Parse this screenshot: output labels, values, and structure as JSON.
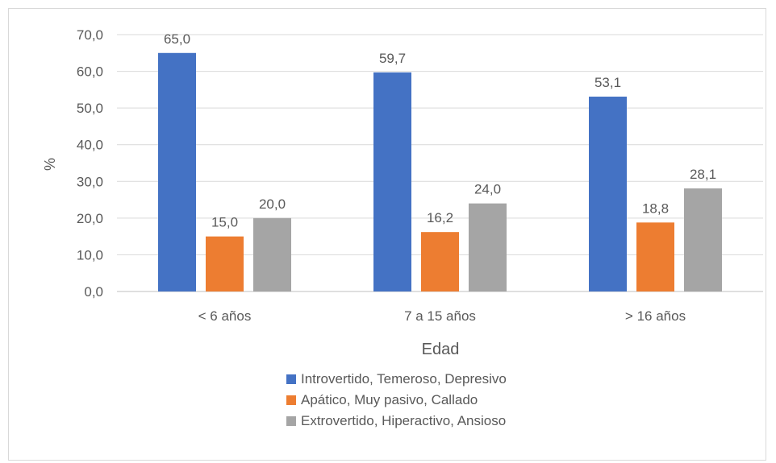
{
  "chart_data": {
    "type": "bar",
    "categories": [
      "< 6 años",
      "7 a 15 años",
      "> 16 años"
    ],
    "series": [
      {
        "name": "Introvertido, Temeroso, Depresivo",
        "values": [
          65.0,
          59.7,
          53.1
        ],
        "color": "#4472c4"
      },
      {
        "name": "Apático, Muy pasivo, Callado",
        "values": [
          15.0,
          16.2,
          18.8
        ],
        "color": "#ed7d31"
      },
      {
        "name": "Extrovertido, Hiperactivo, Ansioso",
        "values": [
          20.0,
          24.0,
          28.1
        ],
        "color": "#a5a5a5"
      }
    ],
    "title": "",
    "xlabel": "Edad",
    "ylabel": "%",
    "ylim": [
      0,
      70
    ],
    "yticks": [
      "0,0",
      "10,0",
      "20,0",
      "30,0",
      "40,0",
      "50,0",
      "60,0",
      "70,0"
    ],
    "data_labels": [
      [
        "65,0",
        "59,7",
        "53,1"
      ],
      [
        "15,0",
        "16,2",
        "18,8"
      ],
      [
        "20,0",
        "24,0",
        "28,1"
      ]
    ],
    "grid": true,
    "legend_position": "bottom"
  }
}
